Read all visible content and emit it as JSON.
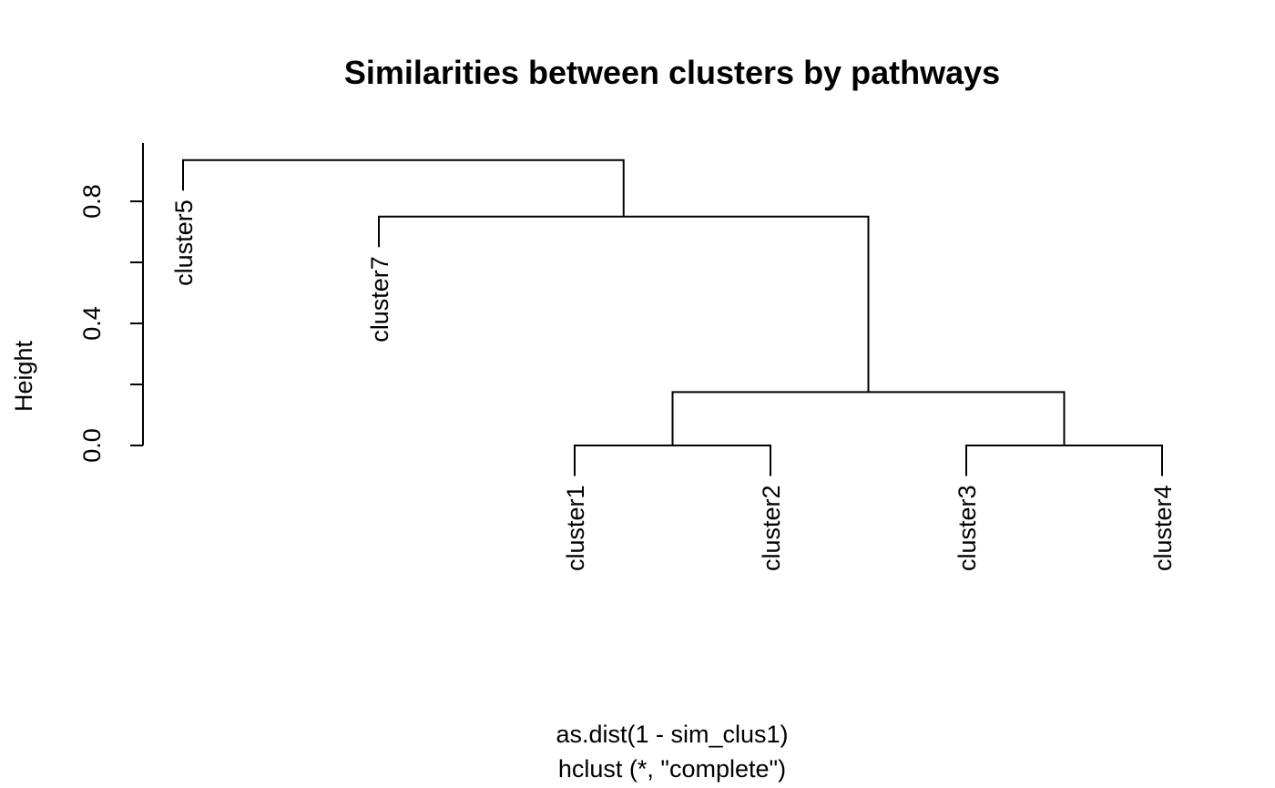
{
  "chart_data": {
    "type": "dendrogram",
    "title": "Similarities between clusters by pathways",
    "ylabel": "Height",
    "xlabel": "as.dist(1 - sim_clus1)",
    "sub": "hclust (*, \"complete\")",
    "ylim": [
      0,
      0.94
    ],
    "y_ticks": [
      0.0,
      0.2,
      0.4,
      0.6,
      0.8
    ],
    "y_tick_labels": [
      "0.0",
      "0.4",
      "0.8"
    ],
    "leaves": [
      "cluster5",
      "cluster7",
      "cluster1",
      "cluster2",
      "cluster3",
      "cluster4"
    ],
    "merges": [
      {
        "left": "cluster1",
        "right": "cluster2",
        "height": 0.0
      },
      {
        "left": "cluster3",
        "right": "cluster4",
        "height": 0.0
      },
      {
        "left": "(cluster1,cluster2)",
        "right": "(cluster3,cluster4)",
        "height": 0.175
      },
      {
        "left": "cluster7",
        "right": "(cluster1,cluster2,cluster3,cluster4)",
        "height": 0.75
      },
      {
        "left": "cluster5",
        "right": "(cluster7,cluster1,cluster2,cluster3,cluster4)",
        "height": 0.935
      }
    ]
  },
  "colors": {
    "line": "#000000",
    "background": "#ffffff"
  }
}
